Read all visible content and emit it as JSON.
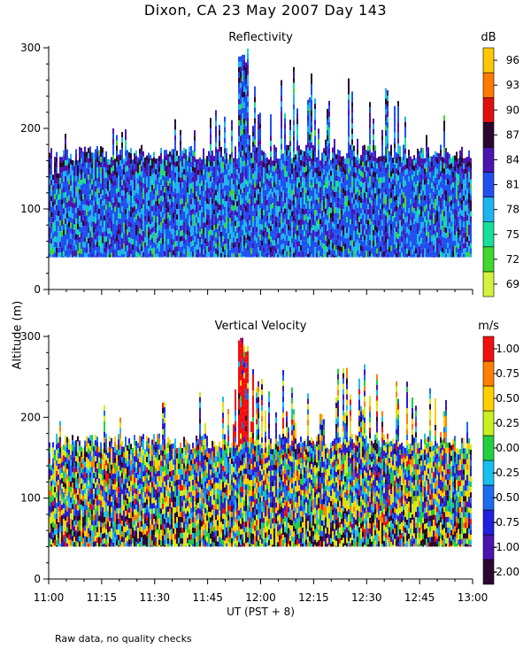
{
  "figure": {
    "title": "Dixon, CA 23 May 2007  Day 143",
    "ylabel": "Altitude  (m)",
    "xlabel": "UT  (PST + 8)",
    "footer": "Raw data, no quality checks"
  },
  "chart_data": [
    {
      "type": "heatmap",
      "title": "Reflectivity",
      "xlabel": "UT  (PST + 8)",
      "ylabel": "Altitude  (m)",
      "x_range": [
        "11:00",
        "13:00"
      ],
      "x_ticks": [
        "11:00",
        "11:15",
        "11:30",
        "11:45",
        "12:00",
        "12:15",
        "12:30",
        "12:45",
        "13:00"
      ],
      "ylim": [
        0,
        300
      ],
      "y_ticks": [
        0,
        100,
        200,
        300
      ],
      "colorbar": {
        "unit": "dB",
        "levels": [
          69,
          72,
          75,
          78,
          81,
          84,
          87,
          90,
          93,
          96
        ],
        "colors": [
          "#d4f23c",
          "#3fd82c",
          "#16e09a",
          "#1fb4f0",
          "#2050f0",
          "#4a14b0",
          "#2a0830",
          "#e01010",
          "#ff7a00",
          "#ffc800"
        ]
      },
      "echo_base_m": 40,
      "typical_echo_top_m": [
        160,
        180
      ],
      "max_echo_top_m": 300,
      "max_echo_top_time": "11:55"
    },
    {
      "type": "heatmap",
      "title": "Vertical Velocity",
      "xlabel": "UT  (PST + 8)",
      "ylabel": "Altitude  (m)",
      "x_range": [
        "11:00",
        "13:00"
      ],
      "x_ticks": [
        "11:00",
        "11:15",
        "11:30",
        "11:45",
        "12:00",
        "12:15",
        "12:30",
        "12:45",
        "13:00"
      ],
      "ylim": [
        0,
        300
      ],
      "y_ticks": [
        0,
        100,
        200,
        300
      ],
      "colorbar": {
        "unit": "m/s",
        "levels": [
          -2.0,
          -1.0,
          -0.75,
          -0.5,
          -0.25,
          0.0,
          0.25,
          0.5,
          0.75,
          1.0
        ],
        "level_labels": [
          "-2.00",
          "-1.00",
          "-0.75",
          "-0.50",
          "-0.25",
          "0.00",
          "0.25",
          "0.50",
          "0.75",
          "1.00"
        ],
        "colors": [
          "#2a0830",
          "#4a14b0",
          "#2020e0",
          "#1c6cf0",
          "#18c0f0",
          "#20d040",
          "#c8f020",
          "#ffd000",
          "#ff8000",
          "#f01010"
        ]
      },
      "echo_base_m": 40,
      "typical_echo_top_m": [
        160,
        180
      ],
      "max_echo_top_m": 300,
      "max_echo_top_time": "11:55"
    }
  ]
}
